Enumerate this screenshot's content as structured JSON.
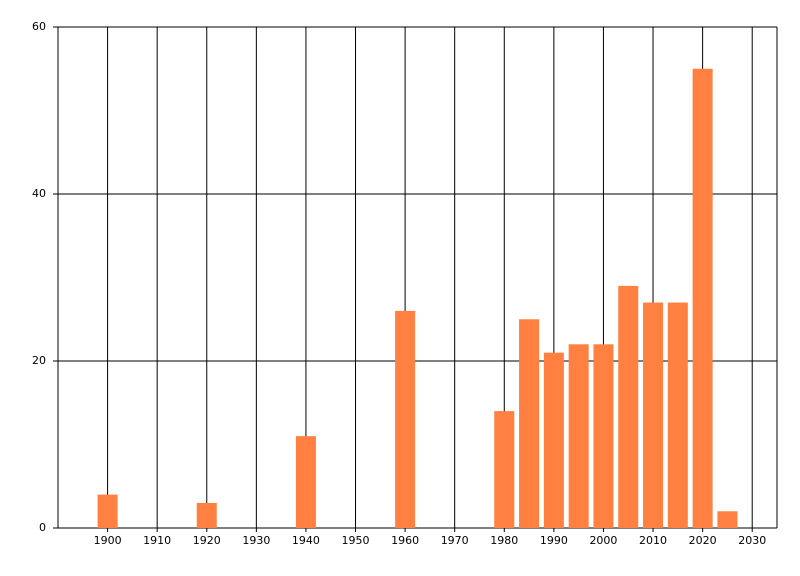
{
  "chart_data": {
    "type": "bar",
    "x": [
      1900,
      1920,
      1940,
      1960,
      1980,
      1985,
      1990,
      1995,
      2000,
      2005,
      2010,
      2015,
      2020,
      2025
    ],
    "values": [
      4,
      3,
      11,
      26,
      14,
      25,
      21,
      22,
      22,
      29,
      27,
      27,
      55,
      2
    ],
    "color": "#ff8040",
    "xlim": [
      1890,
      2035
    ],
    "xticks": [
      1900,
      1910,
      1920,
      1930,
      1940,
      1950,
      1960,
      1970,
      1980,
      1990,
      2000,
      2010,
      2020,
      2030
    ],
    "ylim": [
      0,
      60
    ],
    "yticks": [
      0,
      20,
      40,
      60
    ],
    "grid": true
  }
}
